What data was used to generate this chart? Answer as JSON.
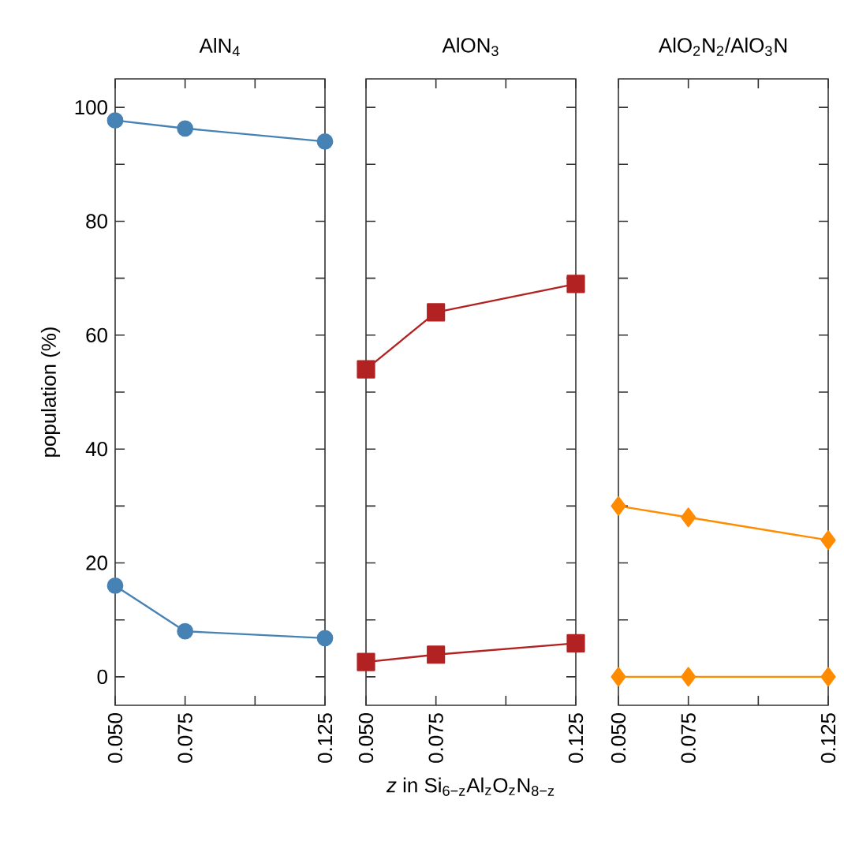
{
  "chart_data": [
    {
      "type": "line",
      "title": "AlN$_{4}$",
      "ylabel": "population (%)",
      "xlim": [
        0.05,
        0.125
      ],
      "ylim": [
        -5,
        105
      ],
      "xticks": [
        {
          "value": 0.05,
          "label": "0.050"
        },
        {
          "value": 0.075,
          "label": "0.075"
        },
        {
          "value": 0.1,
          "label": null
        },
        {
          "value": 0.125,
          "label": "0.125"
        }
      ],
      "yticks": [
        0,
        {
          "value": 10,
          "label": null
        },
        20,
        {
          "value": 30,
          "label": null
        },
        40,
        {
          "value": 50,
          "label": null
        },
        60,
        {
          "value": 70,
          "label": null
        },
        80,
        {
          "value": 90,
          "label": null
        },
        100
      ],
      "x": [
        0.05,
        0.075,
        0.125
      ],
      "series": [
        {
          "color": "#4682b4",
          "marker": "circle",
          "values": [
            97.7,
            96.3,
            94.0
          ]
        },
        {
          "color": "#4682b4",
          "marker": "circle",
          "values": [
            16,
            8,
            6.8
          ]
        }
      ]
    },
    {
      "type": "line",
      "title": "AlON$_{3}$",
      "xlabel": "*z* in Si$_{6−z}$Al$_{z}$O$_{z}$N$_{8−z}$",
      "xlim": [
        0.05,
        0.125
      ],
      "ylim": [
        -5,
        105
      ],
      "tick_labels": "x",
      "xticks": [
        {
          "value": 0.05,
          "label": "0.050"
        },
        {
          "value": 0.075,
          "label": "0.075"
        },
        {
          "value": 0.1,
          "label": null
        },
        {
          "value": 0.125,
          "label": "0.125"
        }
      ],
      "yticks": [
        0,
        {
          "value": 10,
          "label": null
        },
        20,
        {
          "value": 30,
          "label": null
        },
        40,
        {
          "value": 50,
          "label": null
        },
        60,
        {
          "value": 70,
          "label": null
        },
        80,
        {
          "value": 90,
          "label": null
        },
        100
      ],
      "x": [
        0.05,
        0.075,
        0.125
      ],
      "series": [
        {
          "color": "#b22222",
          "marker": "square",
          "values": [
            54,
            64,
            69
          ]
        },
        {
          "color": "#b22222",
          "marker": "square",
          "values": [
            2.6,
            3.9,
            5.9
          ]
        }
      ]
    },
    {
      "type": "line",
      "title": "AlO$_{2}$N$_{2}$/AlO$_{3}$N",
      "xlim": [
        0.05,
        0.125
      ],
      "ylim": [
        -5,
        105
      ],
      "tick_labels": "x",
      "xticks": [
        {
          "value": 0.05,
          "label": "0.050"
        },
        {
          "value": 0.075,
          "label": "0.075"
        },
        {
          "value": 0.1,
          "label": null
        },
        {
          "value": 0.125,
          "label": "0.125"
        }
      ],
      "yticks": [
        0,
        {
          "value": 10,
          "label": null
        },
        20,
        {
          "value": 30,
          "label": null
        },
        40,
        {
          "value": 50,
          "label": null
        },
        60,
        {
          "value": 70,
          "label": null
        },
        80,
        {
          "value": 90,
          "label": null
        },
        100
      ],
      "x": [
        0.05,
        0.075,
        0.125
      ],
      "series": [
        {
          "color": "#ff8c00",
          "marker": "diamond",
          "values": [
            30,
            28,
            24
          ]
        },
        {
          "color": "#ff8c00",
          "marker": "diamond",
          "values": [
            0,
            0,
            0
          ]
        }
      ]
    }
  ]
}
